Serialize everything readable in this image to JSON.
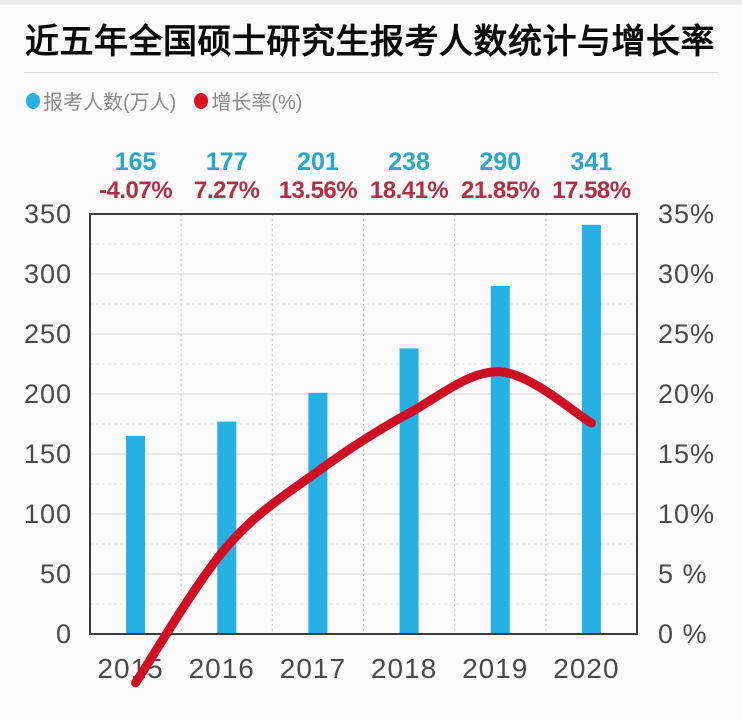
{
  "title": "近五年全国硕士研究生报考人数统计与增长率",
  "legend": [
    {
      "label": "报考人数(万人)",
      "color": "#29b0e3"
    },
    {
      "label": "增长率(%)",
      "color": "#dc101e"
    }
  ],
  "chart_data": {
    "type": "bar",
    "subtype": "bar-line-combo",
    "title": "近五年全国硕士研究生报考人数统计与增长率",
    "categories": [
      "2015",
      "2016",
      "2017",
      "2018",
      "2019",
      "2020"
    ],
    "series": [
      {
        "name": "报考人数(万人)",
        "type": "bar",
        "axis": "left",
        "color": "#29b0e3",
        "values": [
          165,
          177,
          201,
          238,
          290,
          341
        ],
        "data_labels": [
          "165",
          "177",
          "201",
          "238",
          "290",
          "341"
        ],
        "data_label_color": "#2aa6c6"
      },
      {
        "name": "增长率(%)",
        "type": "line",
        "axis": "right",
        "color": "#ce0e24",
        "values": [
          -4.07,
          7.27,
          13.56,
          18.41,
          21.85,
          17.58
        ],
        "data_labels": [
          "-4.07%",
          "7.27%",
          "13.56%",
          "18.41%",
          "21.85%",
          "17.58%"
        ],
        "data_label_color": "#b12f44"
      }
    ],
    "left_axis": {
      "min": 0,
      "max": 350,
      "tick_labels": [
        "0",
        "50",
        "100",
        "150",
        "200",
        "250",
        "300",
        "350"
      ]
    },
    "right_axis": {
      "min": 0,
      "max": 35,
      "tick_labels": [
        "0 %",
        "5 %",
        "10%",
        "15%",
        "20%",
        "25%",
        "30%",
        "35%"
      ]
    },
    "x_axis": {
      "tick_labels": [
        "2015",
        "2016",
        "2017",
        "2018",
        "2019",
        "2020"
      ],
      "label_color": "#4a4a4a"
    },
    "grid": {
      "h_major_step": 50,
      "h_minor_step": 25,
      "v_lines": "category-boundaries",
      "grid_on": true
    },
    "legend_position": "top-left"
  }
}
